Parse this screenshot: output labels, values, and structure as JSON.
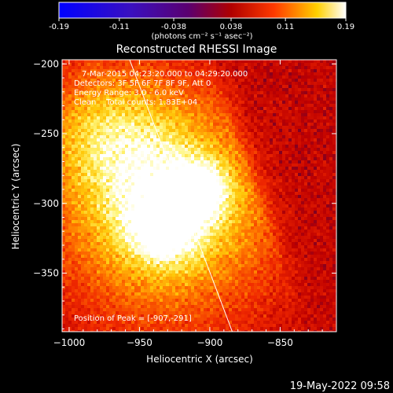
{
  "colorbar": {
    "tick_labels": [
      "-0.19",
      "-0.11",
      "-0.038",
      "0.038",
      "0.11",
      "0.19"
    ],
    "unit_label": "(photons cm⁻² s⁻¹ asec⁻²)"
  },
  "chart_data": {
    "type": "heatmap",
    "title": "Reconstructed RHESSI Image",
    "xlabel": "Heliocentric X (arcsec)",
    "ylabel": "Heliocentric Y (arcsec)",
    "xlim": [
      -1005,
      -810
    ],
    "ylim": [
      -392,
      -197
    ],
    "x_ticks": [
      -1000,
      -950,
      -900,
      -850
    ],
    "y_ticks": [
      -200,
      -250,
      -300,
      -350
    ],
    "x_tick_labels": [
      "−1000",
      "−950",
      "−900",
      "−850"
    ],
    "y_tick_labels": [
      "−200",
      "−250",
      "−300",
      "−350"
    ],
    "color_range": [
      -0.19,
      0.19
    ],
    "peak_position": [
      -907,
      -291
    ],
    "limb_line": [
      [
        -957,
        -197
      ],
      [
        -884,
        -392
      ]
    ],
    "colors": {
      "map_low": "#1010ff",
      "map_mid": "#5a00a8",
      "map_high": "#ffffff"
    },
    "annotations": [
      "7-Mar-2015 04:23:20.000 to 04:29:20.000",
      "Detectors: 3F 5F 6F 7F 8F 9F, Att 0",
      "Energy Range: 3.0 - 6.0 keV",
      "Clean    Total counts: 1.83E+04",
      "Position of Peak = [-907,-291]"
    ]
  },
  "footer": {
    "timestamp": "19-May-2022 09:58"
  }
}
